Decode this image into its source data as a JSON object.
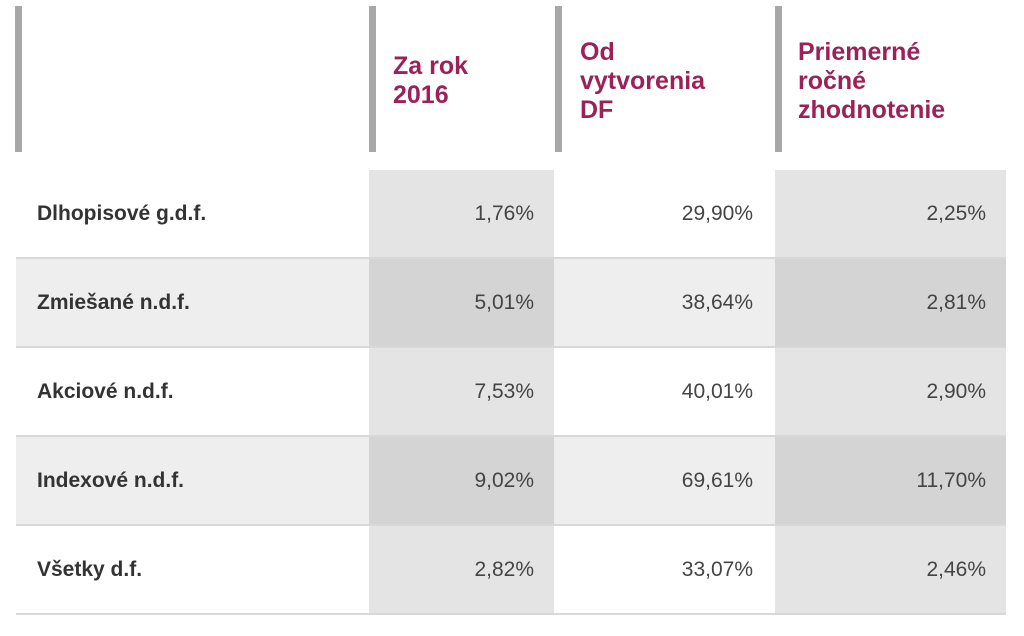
{
  "table": {
    "headers": [
      "",
      "Za rok\n2016",
      "Od\nvytvorenia\nDF",
      "Priemerné\nročné\nzhodnotenie"
    ],
    "rows": [
      {
        "name": "Dlhopisové g.d.f.",
        "za_rok_2016": "1,76%",
        "od_vytvorenia": "29,90%",
        "priemerne_rocne": "2,25%"
      },
      {
        "name": "Zmiešané n.d.f.",
        "za_rok_2016": "5,01%",
        "od_vytvorenia": "38,64%",
        "priemerne_rocne": "2,81%"
      },
      {
        "name": "Akciové n.d.f.",
        "za_rok_2016": "7,53%",
        "od_vytvorenia": "40,01%",
        "priemerne_rocne": "2,90%"
      },
      {
        "name": "Indexové n.d.f.",
        "za_rok_2016": "9,02%",
        "od_vytvorenia": "69,61%",
        "priemerne_rocne": "11,70%"
      },
      {
        "name": "Všetky d.f.",
        "za_rok_2016": "2,82%",
        "od_vytvorenia": "33,07%",
        "priemerne_rocne": "2,46%"
      }
    ]
  },
  "colors": {
    "header_text": "#9b2259",
    "header_bar": "#a8a8a8",
    "band": "#e4e4e4"
  }
}
